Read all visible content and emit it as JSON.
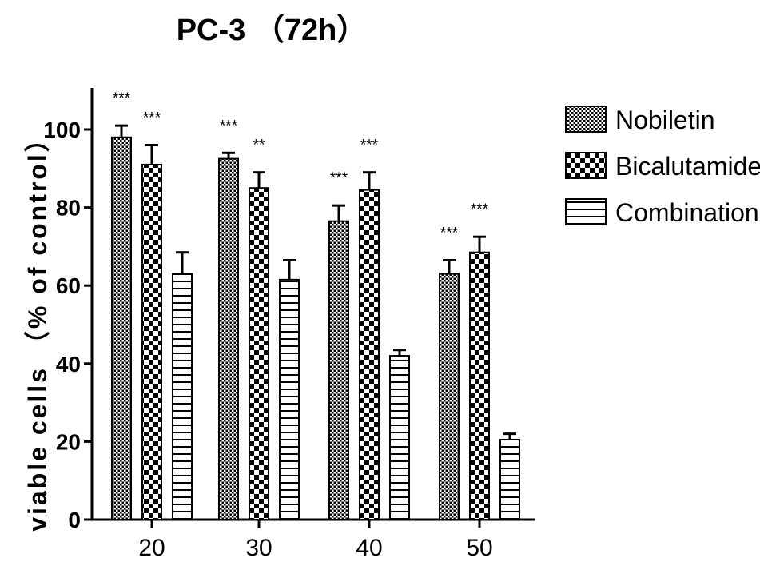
{
  "chart_data": {
    "type": "bar",
    "title": "PC-3 （72h）",
    "xlabel": "",
    "ylabel": "viable cells （% of control）",
    "categories": [
      "20",
      "30",
      "40",
      "50"
    ],
    "ylim": [
      0,
      110
    ],
    "yticks": [
      0,
      20,
      40,
      60,
      80,
      100
    ],
    "series": [
      {
        "name": "Nobiletin",
        "pattern": "dots",
        "values": [
          98,
          92.5,
          76.5,
          63
        ],
        "errors": [
          3,
          1.5,
          4,
          3.5
        ],
        "significance": [
          "***",
          "***",
          "***",
          "***"
        ]
      },
      {
        "name": "Bicalutamide",
        "pattern": "checker",
        "values": [
          91,
          85,
          84.5,
          68.5
        ],
        "errors": [
          5,
          4,
          4.5,
          4
        ],
        "significance": [
          "***",
          "**",
          "***",
          "***"
        ]
      },
      {
        "name": "Combination",
        "pattern": "hlines",
        "values": [
          63,
          61.5,
          42,
          20.5
        ],
        "errors": [
          5.5,
          5,
          1.5,
          1.5
        ],
        "significance": [
          "",
          "",
          "",
          ""
        ]
      }
    ],
    "legend_position": "right",
    "grid": false,
    "colors": {
      "ink": "#000000",
      "background": "#ffffff"
    }
  }
}
